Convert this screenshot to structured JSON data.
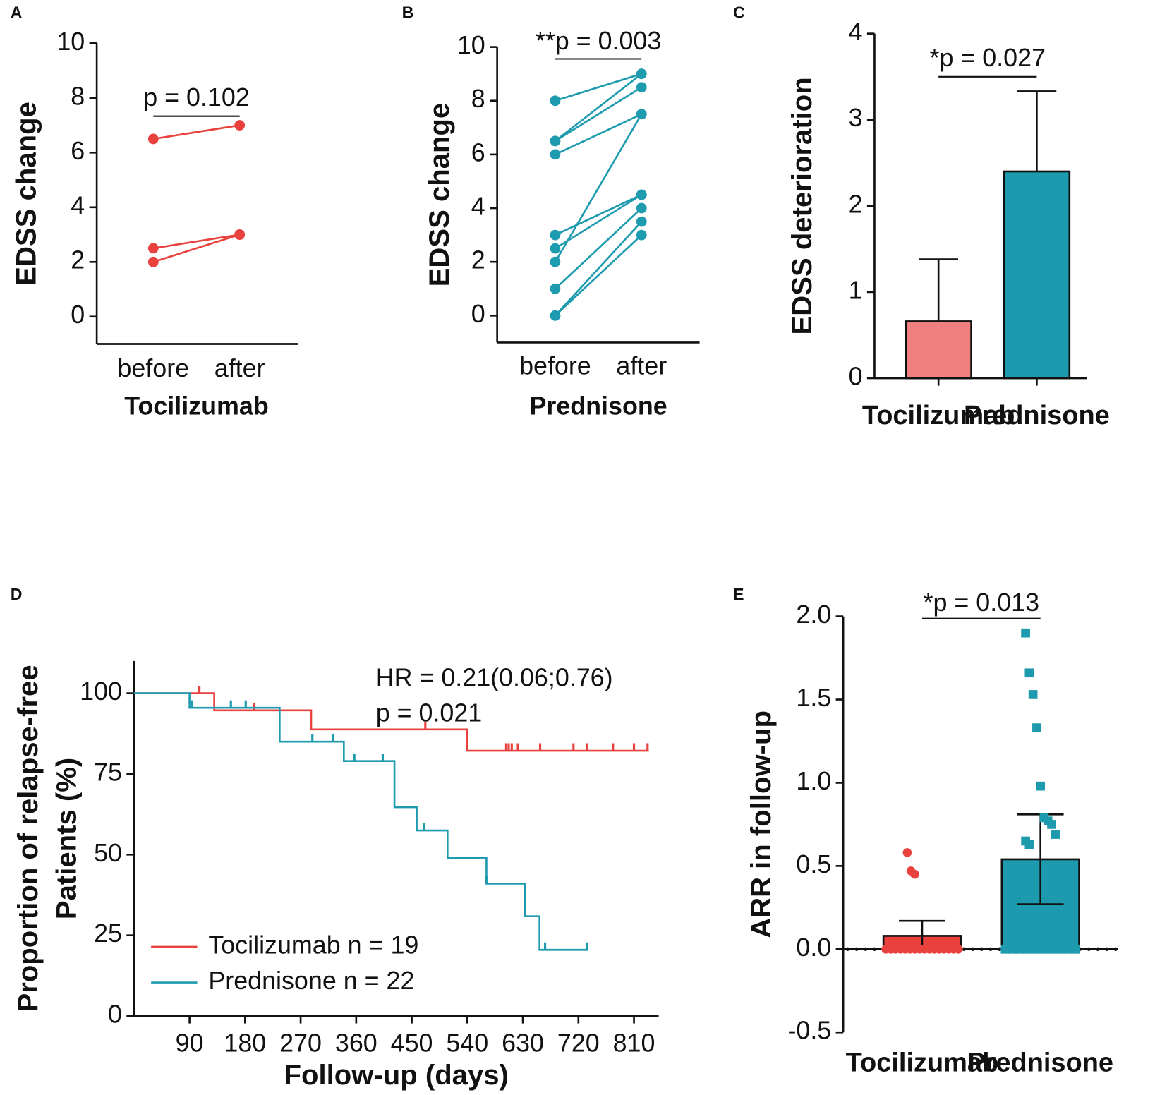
{
  "chart_data": [
    {
      "type": "line",
      "panel": "A",
      "ylabel": "EDSS change",
      "xlabel": "Tocilizumab",
      "annotation": "p = 0.102",
      "categories": [
        "before",
        "after"
      ],
      "color": "#e8413e",
      "series": [
        {
          "values": [
            6.5,
            7
          ]
        },
        {
          "values": [
            2.5,
            3
          ]
        },
        {
          "values": [
            2,
            3
          ]
        }
      ],
      "ylim": [
        -1,
        10
      ],
      "yticks": [
        0,
        2,
        4,
        6,
        8,
        10
      ]
    },
    {
      "type": "line",
      "panel": "B",
      "ylabel": "EDSS change",
      "xlabel": "Prednisone",
      "annotation": "**p = 0.003",
      "categories": [
        "before",
        "after"
      ],
      "color": "#1f9bb0",
      "series": [
        {
          "values": [
            8,
            9
          ]
        },
        {
          "values": [
            6.5,
            9
          ]
        },
        {
          "values": [
            6.5,
            8.5
          ]
        },
        {
          "values": [
            6,
            7.5
          ]
        },
        {
          "values": [
            2,
            7.5
          ]
        },
        {
          "values": [
            3,
            4.5
          ]
        },
        {
          "values": [
            2.5,
            4.5
          ]
        },
        {
          "values": [
            1,
            4
          ]
        },
        {
          "values": [
            0,
            3.5
          ]
        },
        {
          "values": [
            0,
            3
          ]
        }
      ],
      "ylim": [
        -1,
        10
      ],
      "yticks": [
        0,
        2,
        4,
        6,
        8,
        10
      ]
    },
    {
      "type": "bar",
      "panel": "C",
      "ylabel": "EDSS deterioration",
      "annotation": "*p = 0.027",
      "categories": [
        "Tocilizumab",
        "Prednisone"
      ],
      "values": [
        0.66,
        2.4
      ],
      "errors": [
        0.72,
        0.93
      ],
      "colors": [
        "#f08080",
        "#1d9aae"
      ],
      "ylim": [
        0,
        4
      ],
      "yticks": [
        0,
        1,
        2,
        3,
        4
      ]
    },
    {
      "type": "step",
      "panel": "D",
      "ylabel": [
        "Proportion of relapse-free",
        "Patients (%)"
      ],
      "xlabel": "Follow-up (days)",
      "annotations": [
        "HR = 0.21(0.06;0.76)",
        "p = 0.021"
      ],
      "series": [
        {
          "name": "Tocilizumab n = 19",
          "color": "#e8413e",
          "x": [
            0,
            130,
            287,
            540,
            834
          ],
          "values": [
            100,
            94.7,
            88.8,
            82.2,
            82.2
          ],
          "censored": [
            106,
            195,
            472,
            603,
            607,
            612,
            622,
            658,
            712,
            734,
            776,
            810,
            832
          ]
        },
        {
          "name": "Prednisone n = 22",
          "color": "#1f9bb0",
          "x": [
            0,
            90,
            236,
            340,
            422,
            458,
            508,
            571,
            633,
            657,
            735
          ],
          "values": [
            100,
            95.5,
            85,
            79,
            64.7,
            57.5,
            49,
            41,
            30.9,
            20.5,
            20.5
          ],
          "censored": [
            94,
            157,
            181,
            289,
            323,
            357,
            403,
            470,
            571,
            666,
            734
          ]
        }
      ],
      "xlim": [
        0,
        850
      ],
      "xticks": [
        90,
        180,
        270,
        360,
        450,
        540,
        630,
        720,
        810
      ],
      "ylim": [
        0,
        110
      ],
      "yticks": [
        0,
        25,
        50,
        75,
        100
      ]
    },
    {
      "type": "bar",
      "panel": "E",
      "ylabel": "ARR in follow-up",
      "annotation": "*p = 0.013",
      "categories": [
        "Tocilizumab",
        "Prednisone"
      ],
      "values": [
        0.08,
        0.54
      ],
      "errors": [
        0.09,
        0.27
      ],
      "colors": [
        "#e8413e",
        "#1d9aae"
      ],
      "points": [
        [
          0.58,
          0.47,
          0.45,
          0,
          0,
          0,
          0,
          0,
          0,
          0,
          0,
          0,
          0,
          0,
          0,
          0,
          0,
          0,
          0
        ],
        [
          1.9,
          1.66,
          1.53,
          1.33,
          0.98,
          0.79,
          0.77,
          0.75,
          0.69,
          0.65,
          0.63,
          0,
          0,
          0,
          0,
          0,
          0,
          0,
          0,
          0,
          0,
          0
        ]
      ],
      "ylim": [
        -0.5,
        2.0
      ],
      "yticks": [
        {
          "value": -0.5,
          "label": "-0.5"
        },
        {
          "value": 0,
          "label": "0.0"
        },
        {
          "value": 0.5,
          "label": "0.5"
        },
        {
          "value": 1,
          "label": "1.0"
        },
        {
          "value": 1.5,
          "label": "1.5"
        },
        {
          "value": 2,
          "label": "2.0"
        }
      ]
    }
  ]
}
